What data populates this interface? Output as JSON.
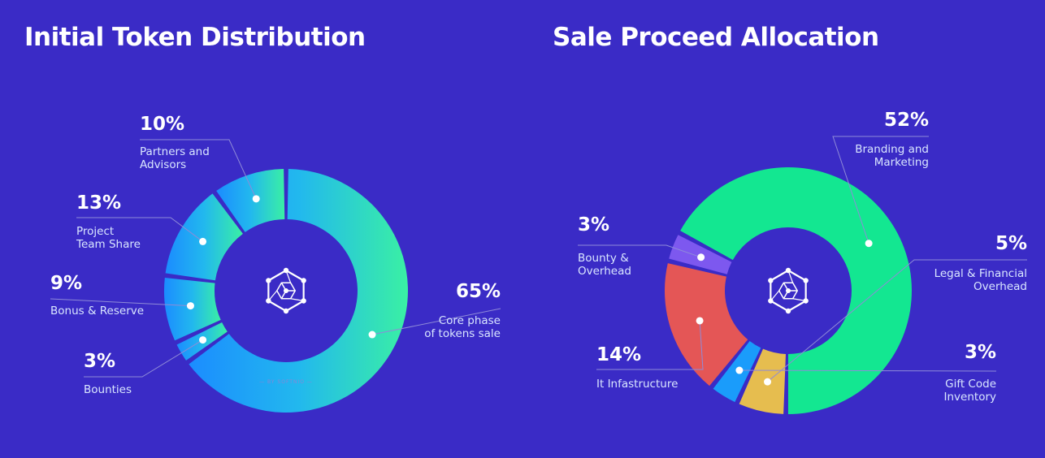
{
  "colors": {
    "background": "#3a2bc6",
    "leader_line": "#8f8bd8"
  },
  "chart_data": [
    {
      "type": "pie",
      "title": "Initial Token Distribution",
      "watermark": "— BY SOFTNIO —",
      "center_icon": "hexagon-cube-icon",
      "slices": [
        {
          "label": "Core phase of tokens sale",
          "lines": [
            "Core phase",
            "of tokens sale"
          ],
          "value": 65,
          "display": "65%",
          "color": "#33c3e8"
        },
        {
          "label": "Bounties",
          "lines": [
            "Bounties"
          ],
          "value": 3,
          "display": "3%",
          "color": "#1aa5ff"
        },
        {
          "label": "Bonus & Reserve",
          "lines": [
            "Bonus & Reserve"
          ],
          "value": 9,
          "display": "9%",
          "color": "#1e9cff"
        },
        {
          "label": "Project Team Share",
          "lines": [
            "Project",
            "Team Share"
          ],
          "value": 13,
          "display": "13%",
          "color": "#1aa0fb"
        },
        {
          "label": "Partners and Advisors",
          "lines": [
            "Partners and",
            "Advisors"
          ],
          "value": 10,
          "display": "10%",
          "color": "#18b3f0"
        }
      ]
    },
    {
      "type": "pie",
      "title": "Sale Proceed Allocation",
      "center_icon": "hexagon-cube-icon",
      "slices": [
        {
          "label": "Branding and Marketing",
          "lines": [
            "Branding and",
            "Marketing"
          ],
          "value": 52,
          "display": "52%",
          "color": "#13e791"
        },
        {
          "label": "Legal & Financial Overhead",
          "lines": [
            "Legal & Financial",
            "Overhead"
          ],
          "value": 5,
          "display": "5%",
          "color": "#e6bd4f"
        },
        {
          "label": "Gift Code Inventory",
          "lines": [
            "Gift Code",
            "Inventory"
          ],
          "value": 3,
          "display": "3%",
          "color": "#1a9cfb"
        },
        {
          "label": "It Infastructure",
          "lines": [
            "It Infastructure"
          ],
          "value": 14,
          "display": "14%",
          "color": "#e45656"
        },
        {
          "label": "Bounty & Overhead",
          "lines": [
            "Bounty &",
            "Overhead"
          ],
          "value": 3,
          "display": "3%",
          "color": "#7d58ef"
        }
      ]
    }
  ]
}
